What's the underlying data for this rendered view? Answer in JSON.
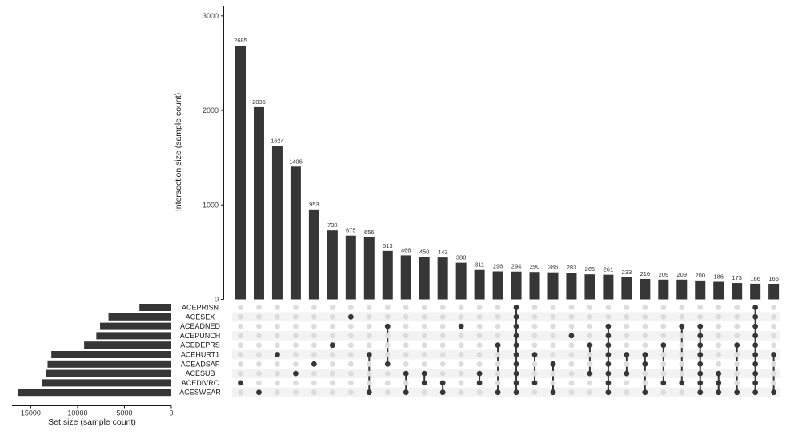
{
  "chart_data": {
    "type": "upset",
    "ylabel": "Intersection size (sample count)",
    "set_size_label": "Set size (sample count)",
    "ylim": [
      0,
      3100
    ],
    "yticks": [
      0,
      1000,
      2000,
      3000
    ],
    "set_size_ticks": [
      15000,
      10000,
      5000,
      0
    ],
    "set_size_xlim": [
      0,
      17000
    ],
    "sets": [
      "ACEPRISN",
      "ACESEX",
      "ACEADNED",
      "ACEPUNCH",
      "ACEDEPRS",
      "ACEHURT1",
      "ACEADSAF",
      "ACESUB",
      "ACEDIVRC",
      "ACESWEAR"
    ],
    "set_sizes": [
      3400,
      6700,
      7600,
      8000,
      9300,
      12800,
      13200,
      13400,
      13800,
      16400
    ],
    "intersections": [
      {
        "value": 2685,
        "sets": [
          "ACEDIVRC"
        ]
      },
      {
        "value": 2035,
        "sets": [
          "ACESWEAR"
        ]
      },
      {
        "value": 1624,
        "sets": [
          "ACEHURT1"
        ]
      },
      {
        "value": 1406,
        "sets": [
          "ACESUB"
        ]
      },
      {
        "value": 953,
        "sets": [
          "ACEADSAF"
        ]
      },
      {
        "value": 730,
        "sets": [
          "ACEDEPRS"
        ]
      },
      {
        "value": 675,
        "sets": [
          "ACESEX"
        ]
      },
      {
        "value": 656,
        "sets": [
          "ACEHURT1",
          "ACESWEAR"
        ]
      },
      {
        "value": 513,
        "sets": [
          "ACEADNED",
          "ACEADSAF"
        ]
      },
      {
        "value": 466,
        "sets": [
          "ACESUB",
          "ACESWEAR"
        ]
      },
      {
        "value": 450,
        "sets": [
          "ACESUB",
          "ACEDIVRC"
        ]
      },
      {
        "value": 443,
        "sets": [
          "ACEDIVRC",
          "ACESWEAR"
        ]
      },
      {
        "value": 388,
        "sets": [
          "ACEADNED"
        ]
      },
      {
        "value": 311,
        "sets": [
          "ACESUB",
          "ACEDIVRC"
        ]
      },
      {
        "value": 296,
        "sets": [
          "ACEDEPRS",
          "ACESWEAR"
        ]
      },
      {
        "value": 294,
        "sets": [
          "ACEPRISN",
          "ACESEX",
          "ACEADNED",
          "ACEPUNCH",
          "ACEDEPRS",
          "ACEHURT1",
          "ACEADSAF",
          "ACESUB",
          "ACEDIVRC",
          "ACESWEAR"
        ]
      },
      {
        "value": 290,
        "sets": [
          "ACEHURT1",
          "ACEDIVRC"
        ]
      },
      {
        "value": 286,
        "sets": [
          "ACEADSAF",
          "ACESWEAR"
        ]
      },
      {
        "value": 283,
        "sets": [
          "ACEPUNCH"
        ]
      },
      {
        "value": 265,
        "sets": [
          "ACEDEPRS",
          "ACESUB"
        ]
      },
      {
        "value": 261,
        "sets": [
          "ACEADNED",
          "ACEPUNCH",
          "ACEDEPRS",
          "ACEHURT1",
          "ACEADSAF",
          "ACESUB",
          "ACEDIVRC",
          "ACESWEAR"
        ]
      },
      {
        "value": 233,
        "sets": [
          "ACEHURT1",
          "ACESUB"
        ]
      },
      {
        "value": 216,
        "sets": [
          "ACEHURT1",
          "ACEADSAF",
          "ACESWEAR"
        ]
      },
      {
        "value": 209,
        "sets": [
          "ACEDEPRS",
          "ACEDIVRC"
        ]
      },
      {
        "value": 209,
        "sets": [
          "ACEADNED",
          "ACEDIVRC"
        ]
      },
      {
        "value": 200,
        "sets": [
          "ACEADNED",
          "ACEPUNCH",
          "ACEDEPRS",
          "ACEHURT1",
          "ACEADSAF",
          "ACESUB",
          "ACEDIVRC",
          "ACESWEAR"
        ]
      },
      {
        "value": 186,
        "sets": [
          "ACESUB",
          "ACEDIVRC",
          "ACESWEAR"
        ]
      },
      {
        "value": 173,
        "sets": [
          "ACEDEPRS",
          "ACESWEAR"
        ]
      },
      {
        "value": 166,
        "sets": [
          "ACEPRISN",
          "ACESEX",
          "ACEADNED",
          "ACEPUNCH",
          "ACEDEPRS",
          "ACEHURT1",
          "ACEADSAF",
          "ACESUB",
          "ACEDIVRC",
          "ACESWEAR"
        ]
      },
      {
        "value": 165,
        "sets": [
          "ACEHURT1",
          "ACESWEAR"
        ]
      }
    ],
    "colors": {
      "bar": "#363636",
      "dot_active": "#363636",
      "dot_inactive": "#dcdcdc",
      "stripe": "#f3f3f3"
    },
    "grid": false
  }
}
